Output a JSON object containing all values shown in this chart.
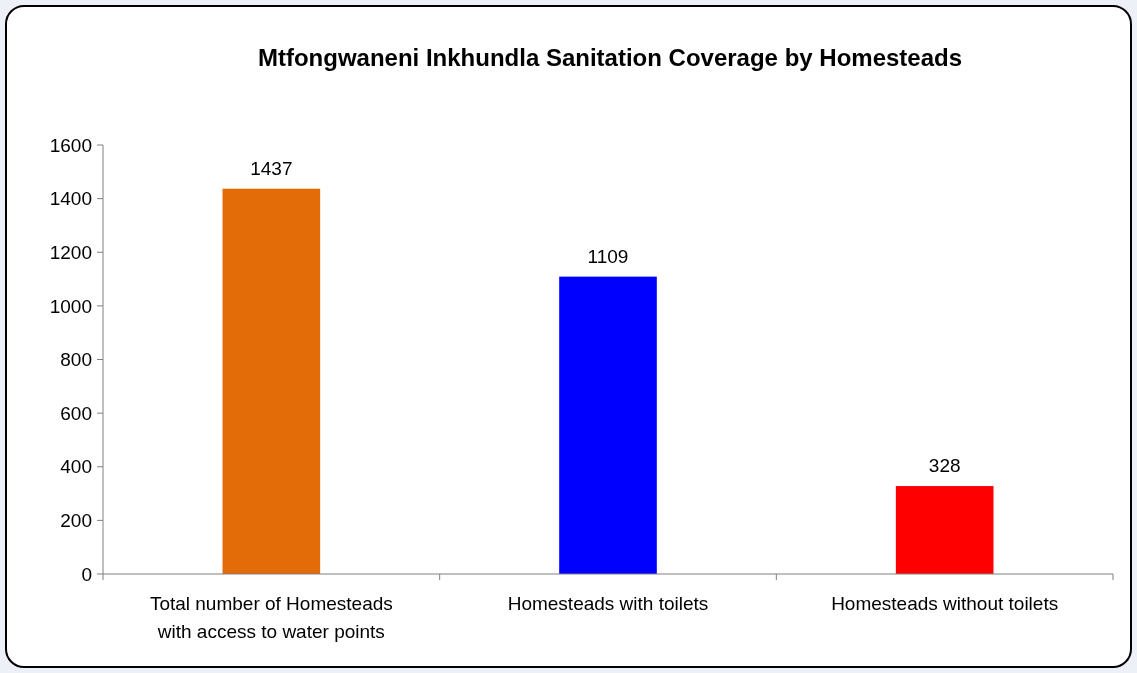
{
  "chart_data": {
    "type": "bar",
    "title": "Mtfongwaneni Inkhundla Sanitation Coverage by Homesteads",
    "categories": [
      "Total number of Homesteads with access to water points",
      "Homesteads with toilets",
      "Homesteads without toilets"
    ],
    "values": [
      1437,
      1109,
      328
    ],
    "colors": [
      "#e36c09",
      "#0000ff",
      "#ff0000"
    ],
    "ylim": [
      0,
      1600
    ],
    "yticks": [
      0,
      200,
      400,
      600,
      800,
      1000,
      1200,
      1400,
      1600
    ],
    "data_labels": true,
    "grid": false
  }
}
